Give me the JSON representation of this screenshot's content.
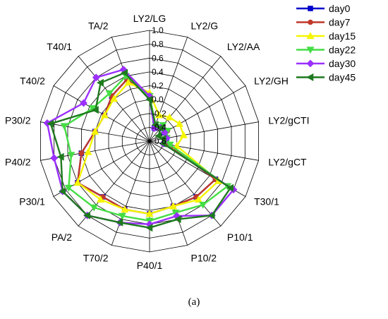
{
  "caption": "(a)",
  "chart_data": {
    "type": "radar",
    "title": "",
    "axes": [
      "LY2/LG",
      "LY2/G",
      "LY2/AA",
      "LY2/GH",
      "LY2/gCTI",
      "LY2/gCT",
      "T30/1",
      "P10/1",
      "P10/2",
      "P40/1",
      "T70/2",
      "PA/2",
      "P30/1",
      "P40/2",
      "P30/2",
      "T40/2",
      "T40/1",
      "TA/2"
    ],
    "ylim": [
      -0.6,
      1.0
    ],
    "ticks": [
      1.0,
      0.8,
      0.6,
      0.4,
      0.2,
      0,
      -0.2,
      -0.4,
      -0.6
    ],
    "tick_labels": [
      "1.0",
      "0.8",
      "0.6",
      "0.4",
      "0.2",
      "0.0",
      "-0.2",
      "-0.4",
      "-0.6"
    ],
    "grid": true,
    "legend_position": "top-right",
    "series": [
      {
        "name": "day0",
        "color": "#0000cc",
        "marker": "square",
        "values": [
          0.05,
          -0.4,
          -0.3,
          -0.35,
          -0.35,
          -0.35,
          0.5,
          0.45,
          0.4,
          0.45,
          0.45,
          0.45,
          0.6,
          0.4,
          0.2,
          0.15,
          0.25,
          0.35
        ]
      },
      {
        "name": "day7",
        "color": "#c0392b",
        "marker": "circle",
        "values": [
          0.05,
          -0.35,
          -0.3,
          -0.3,
          -0.35,
          -0.35,
          0.5,
          0.45,
          0.4,
          0.45,
          0.45,
          0.45,
          0.6,
          0.4,
          0.2,
          0.15,
          0.25,
          0.35
        ]
      },
      {
        "name": "day15",
        "color": "#f5f500",
        "marker": "triangle-up",
        "values": [
          0.1,
          -0.2,
          -0.15,
          -0.1,
          -0.1,
          -0.2,
          0.55,
          0.5,
          0.4,
          0.45,
          0.45,
          0.5,
          0.6,
          0.3,
          0.2,
          0.15,
          0.2,
          0.3
        ]
      },
      {
        "name": "day22",
        "color": "#44dd44",
        "marker": "triangle-down",
        "values": [
          0.05,
          -0.35,
          -0.3,
          -0.3,
          -0.35,
          -0.3,
          0.7,
          0.6,
          0.5,
          0.55,
          0.55,
          0.65,
          0.75,
          0.55,
          0.65,
          0.35,
          0.3,
          0.4
        ]
      },
      {
        "name": "day30",
        "color": "#9b30ff",
        "marker": "diamond",
        "values": [
          0.05,
          -0.4,
          -0.35,
          -0.35,
          -0.35,
          -0.4,
          0.8,
          0.8,
          0.55,
          0.6,
          0.65,
          0.8,
          0.85,
          0.8,
          0.9,
          0.5,
          0.6,
          0.5
        ]
      },
      {
        "name": "day45",
        "color": "#1e7a1e",
        "marker": "triangle-left",
        "values": [
          0.0,
          -0.35,
          -0.35,
          -0.45,
          -0.4,
          -0.4,
          0.75,
          0.8,
          0.6,
          0.65,
          0.65,
          0.8,
          0.85,
          0.7,
          0.85,
          0.3,
          0.5,
          0.45
        ]
      }
    ]
  }
}
